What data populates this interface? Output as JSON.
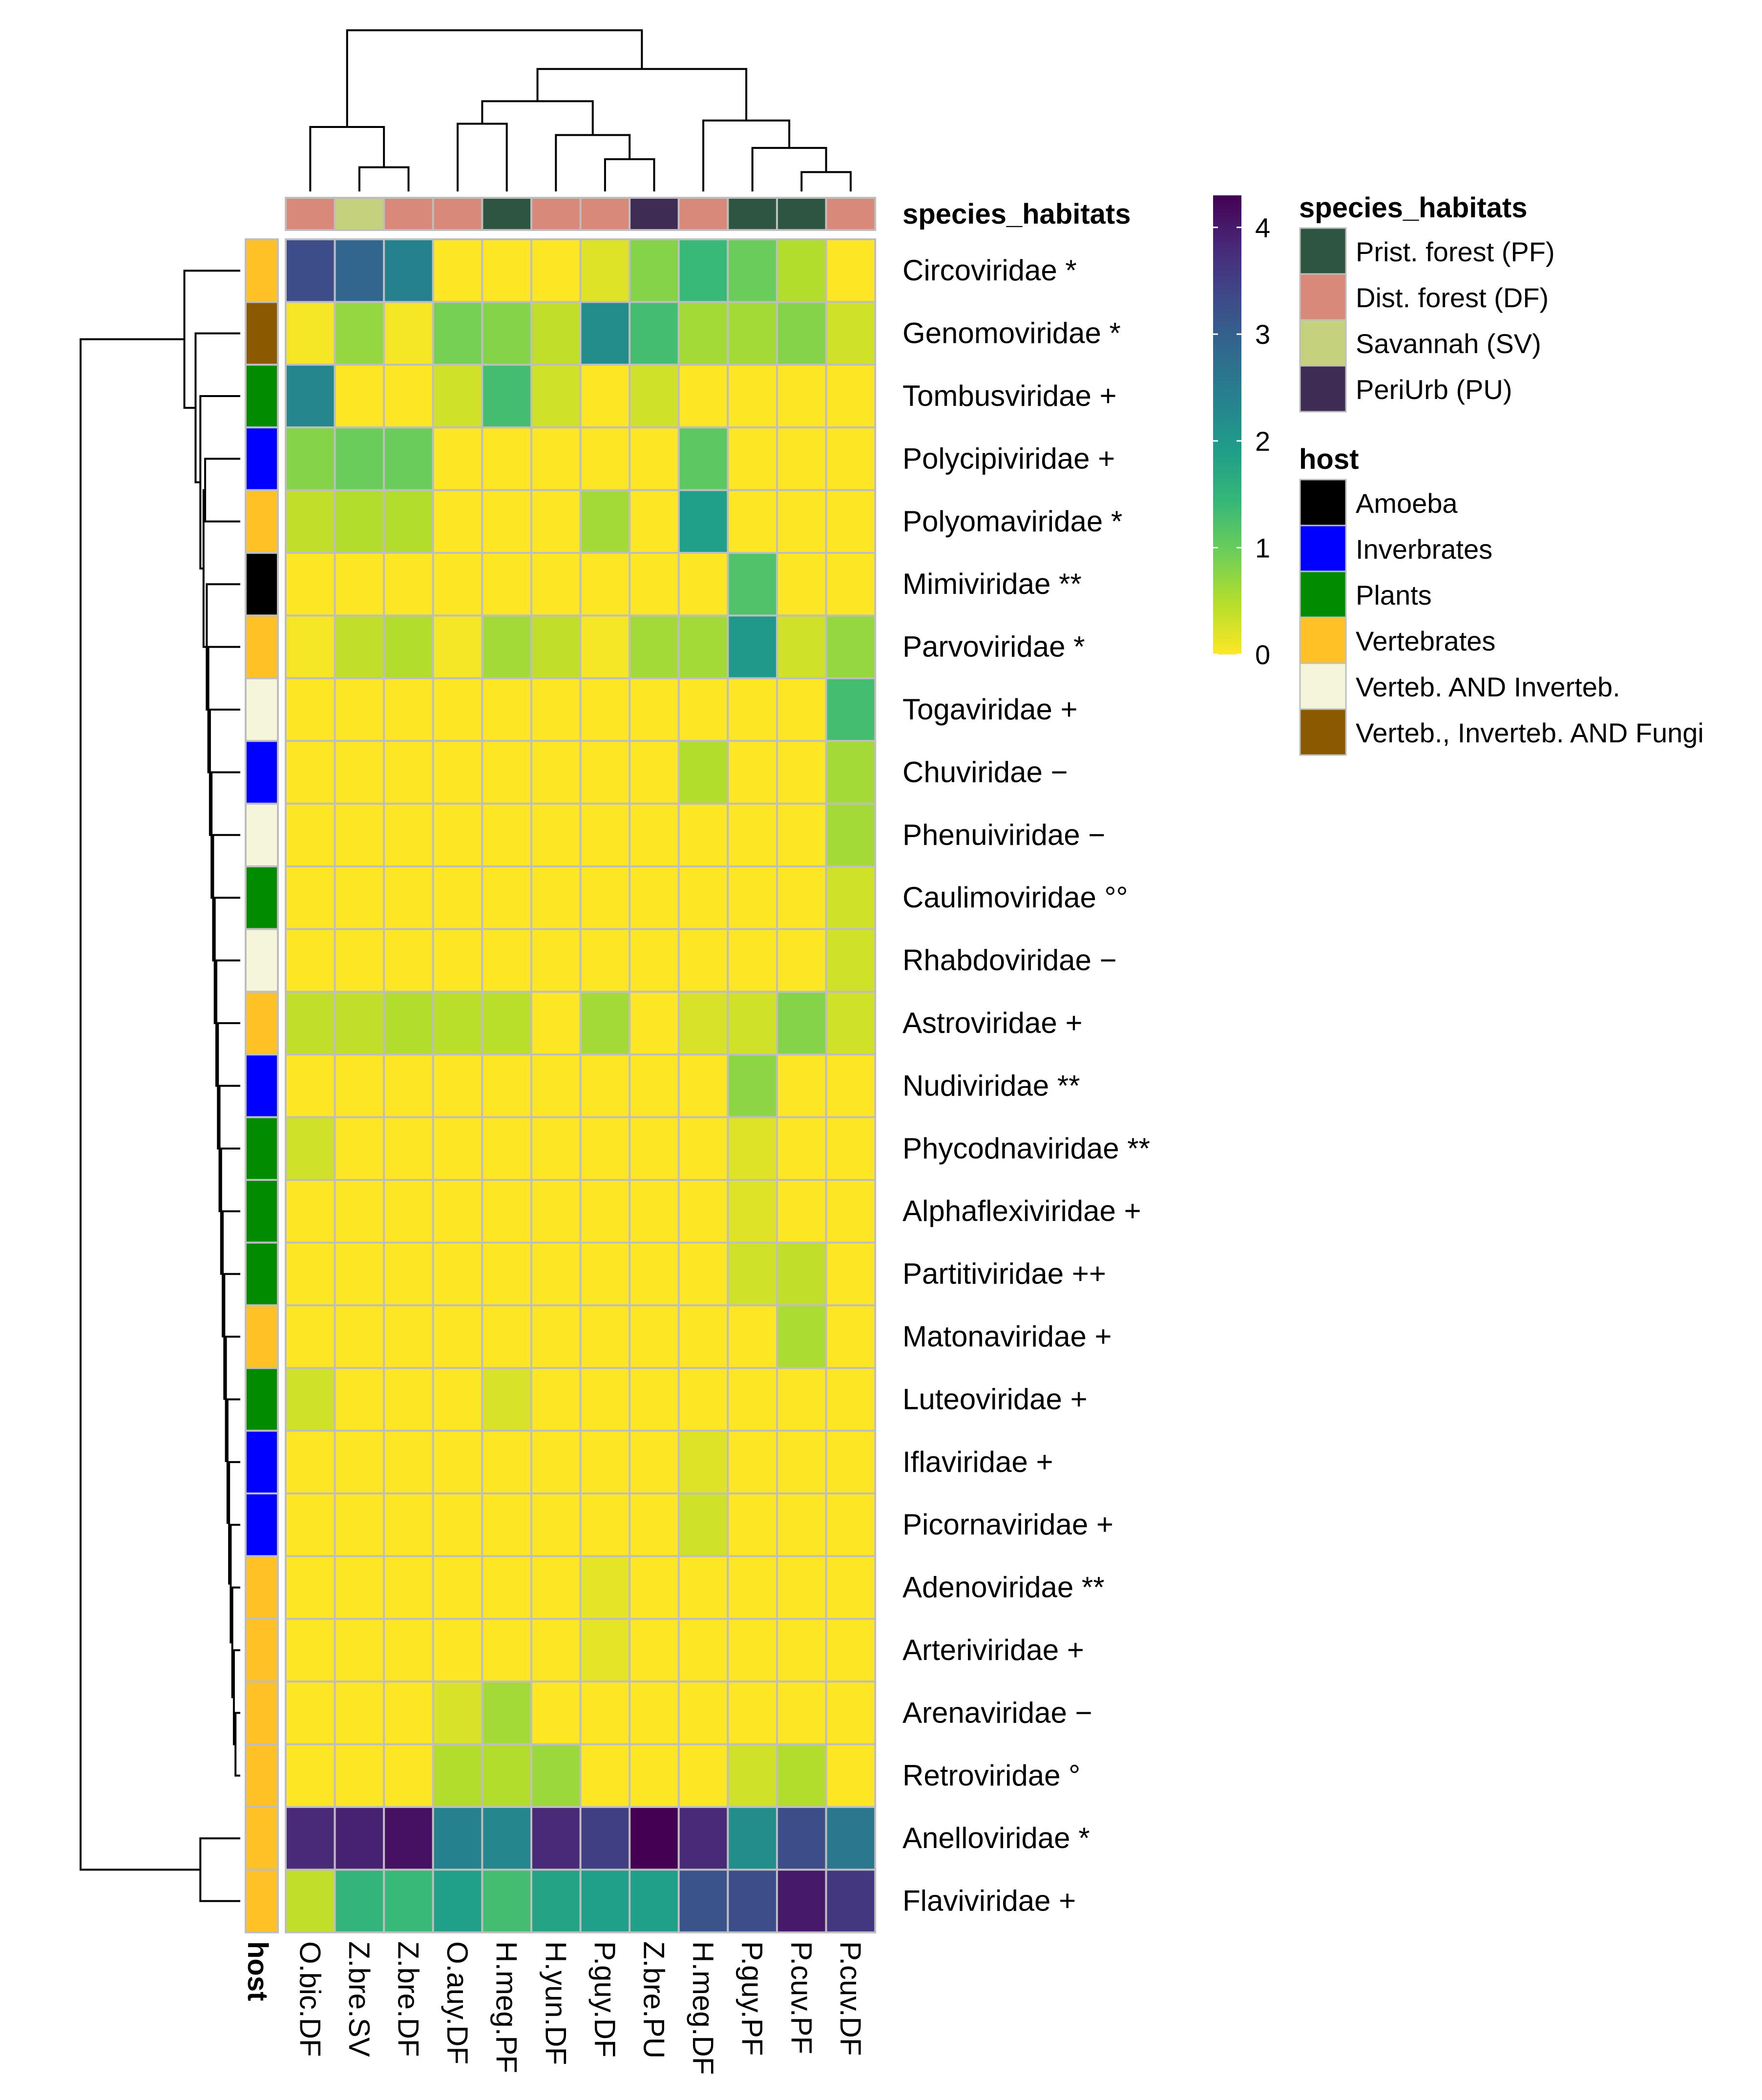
{
  "chart_data": {
    "type": "heatmap",
    "columns": [
      "O.bic.DF",
      "Z.bre.SV",
      "Z.bre.DF",
      "O.auy.DF",
      "H.meg.PF",
      "H.yun.DF",
      "P.guy.DF",
      "Z.bre.PU",
      "H.meg.DF",
      "P.guy.PF",
      "P.cuv.PF",
      "P.cuv.DF"
    ],
    "column_habitats": [
      "Dist. forest (DF)",
      "Savannah (SV)",
      "Dist. forest (DF)",
      "Dist. forest (DF)",
      "Prist. forest (PF)",
      "Dist. forest (DF)",
      "Dist. forest (DF)",
      "PeriUrb (PU)",
      "Dist. forest (DF)",
      "Prist. forest (PF)",
      "Prist. forest (PF)",
      "Dist. forest (DF)"
    ],
    "rows": [
      "Circoviridae *",
      "Genomoviridae *",
      "Tombusviridae +",
      "Polycipiviridae +",
      "Polyomaviridae *",
      "Mimiviridae **",
      "Parvoviridae *",
      "Togaviridae +",
      "Chuviridae −",
      "Phenuiviridae −",
      "Caulimoviridae °°",
      "Rhabdoviridae −",
      "Astroviridae +",
      "Nudiviridae **",
      "Phycodnaviridae **",
      "Alphaflexiviridae +",
      "Partitiviridae ++",
      "Matonaviridae +",
      "Luteoviridae +",
      "Iflaviridae +",
      "Picornaviridae +",
      "Adenoviridae **",
      "Arteriviridae +",
      "Arenaviridae −",
      "Retroviridae °",
      "Anelloviridae *",
      "Flaviviridae +"
    ],
    "row_hosts": [
      "Vertebrates",
      "Verteb., Inverteb. AND Fungi",
      "Plants",
      "Inverbrates",
      "Vertebrates",
      "Amoeba",
      "Vertebrates",
      "Verteb. AND Inverteb.",
      "Inverbrates",
      "Verteb. AND Inverteb.",
      "Plants",
      "Verteb. AND Inverteb.",
      "Vertebrates",
      "Inverbrates",
      "Plants",
      "Plants",
      "Plants",
      "Vertebrates",
      "Plants",
      "Inverbrates",
      "Inverbrates",
      "Vertebrates",
      "Vertebrates",
      "Vertebrates",
      "Vertebrates",
      "Vertebrates",
      "Vertebrates"
    ],
    "values": [
      [
        3.3,
        2.9,
        2.4,
        0,
        0,
        0,
        0.2,
        0.8,
        1.4,
        1.0,
        0.5,
        0
      ],
      [
        0.05,
        0.7,
        0.05,
        0.9,
        0.8,
        0.4,
        2.2,
        1.3,
        0.6,
        0.6,
        0.8,
        0.3
      ],
      [
        2.3,
        0,
        0,
        0.3,
        1.3,
        0.3,
        0,
        0.3,
        0,
        0,
        0,
        0
      ],
      [
        0.8,
        1.0,
        1.0,
        0,
        0,
        0,
        0,
        0,
        1.1,
        0,
        0,
        0
      ],
      [
        0.4,
        0.5,
        0.5,
        0,
        0,
        0,
        0.6,
        0,
        1.9,
        0,
        0,
        0
      ],
      [
        0,
        0,
        0,
        0,
        0,
        0,
        0,
        0,
        0,
        1.2,
        0,
        0
      ],
      [
        0.05,
        0.4,
        0.5,
        0.05,
        0.6,
        0.4,
        0.05,
        0.6,
        0.6,
        2.0,
        0.3,
        0.7
      ],
      [
        0,
        0,
        0,
        0,
        0,
        0,
        0,
        0,
        0,
        0,
        0,
        1.3
      ],
      [
        0,
        0,
        0,
        0,
        0,
        0,
        0,
        0,
        0.5,
        0,
        0,
        0.6
      ],
      [
        0,
        0,
        0,
        0,
        0,
        0,
        0,
        0,
        0,
        0,
        0,
        0.6
      ],
      [
        0,
        0,
        0,
        0,
        0,
        0,
        0,
        0,
        0,
        0,
        0,
        0.3
      ],
      [
        0,
        0,
        0,
        0,
        0,
        0,
        0,
        0,
        0,
        0,
        0,
        0.3
      ],
      [
        0.4,
        0.4,
        0.5,
        0.45,
        0.45,
        0,
        0.6,
        0,
        0.25,
        0.3,
        0.8,
        0.3
      ],
      [
        0,
        0,
        0,
        0,
        0,
        0,
        0,
        0,
        0,
        0.75,
        0,
        0
      ],
      [
        0.3,
        0,
        0,
        0,
        0,
        0,
        0,
        0,
        0,
        0.2,
        0,
        0
      ],
      [
        0,
        0,
        0,
        0,
        0,
        0,
        0,
        0,
        0,
        0.2,
        0,
        0
      ],
      [
        0,
        0,
        0,
        0,
        0,
        0,
        0,
        0,
        0,
        0.3,
        0.4,
        0
      ],
      [
        0,
        0,
        0,
        0,
        0,
        0,
        0,
        0,
        0,
        0,
        0.55,
        0
      ],
      [
        0.3,
        0,
        0,
        0,
        0.25,
        0,
        0,
        0,
        0,
        0,
        0,
        0
      ],
      [
        0,
        0,
        0,
        0,
        0,
        0,
        0,
        0,
        0.2,
        0,
        0,
        0
      ],
      [
        0,
        0,
        0,
        0,
        0,
        0,
        0,
        0,
        0.3,
        0,
        0,
        0
      ],
      [
        0,
        0,
        0,
        0,
        0,
        0,
        0.15,
        0,
        0,
        0,
        0,
        0
      ],
      [
        0,
        0,
        0,
        0,
        0,
        0,
        0.15,
        0,
        0,
        0,
        0,
        0
      ],
      [
        0,
        0,
        0,
        0.25,
        0.6,
        0,
        0,
        0,
        0,
        0,
        0,
        0
      ],
      [
        0,
        0,
        0,
        0.5,
        0.5,
        0.65,
        0,
        0,
        0,
        0.3,
        0.5,
        0
      ],
      [
        3.8,
        3.9,
        4.1,
        2.4,
        2.3,
        3.8,
        3.5,
        4.3,
        3.8,
        2.2,
        3.3,
        2.6
      ],
      [
        0.4,
        1.5,
        1.4,
        1.9,
        1.3,
        1.8,
        1.9,
        1.9,
        3.2,
        3.3,
        4.0,
        3.6
      ]
    ],
    "color_scale": {
      "min": 0,
      "max": 4.3,
      "ticks": [
        0,
        1,
        2,
        3,
        4
      ],
      "colors": [
        "#FDE725",
        "#B5DE2B",
        "#6ECE58",
        "#35B779",
        "#1F9E89",
        "#26828E",
        "#31688E",
        "#3E4A89",
        "#482878",
        "#440154"
      ]
    },
    "annotation_labels": {
      "habitat": "species_habitats",
      "host": "host"
    },
    "legend": {
      "species_habitats": {
        "title": "species_habitats",
        "items": [
          {
            "label": "Prist. forest (PF)",
            "color": "#2D5541"
          },
          {
            "label": "Dist. forest (DF)",
            "color": "#D8897A"
          },
          {
            "label": "Savannah (SV)",
            "color": "#C6D17E"
          },
          {
            "label": "PeriUrb (PU)",
            "color": "#3E2C55"
          }
        ]
      },
      "host": {
        "title": "host",
        "items": [
          {
            "label": "Amoeba",
            "color": "#000000"
          },
          {
            "label": "Inverbrates",
            "color": "#0000FF"
          },
          {
            "label": "Plants",
            "color": "#008B00"
          },
          {
            "label": "Vertebrates",
            "color": "#FFC125"
          },
          {
            "label": "Verteb. AND Inverteb.",
            "color": "#F5F5DC"
          },
          {
            "label": "Verteb., Inverteb. AND Fungi",
            "color": "#8B5A00"
          }
        ]
      }
    },
    "legend_placement": "right",
    "row_dendrogram": "left",
    "column_dendrogram": "top",
    "grid": true
  }
}
